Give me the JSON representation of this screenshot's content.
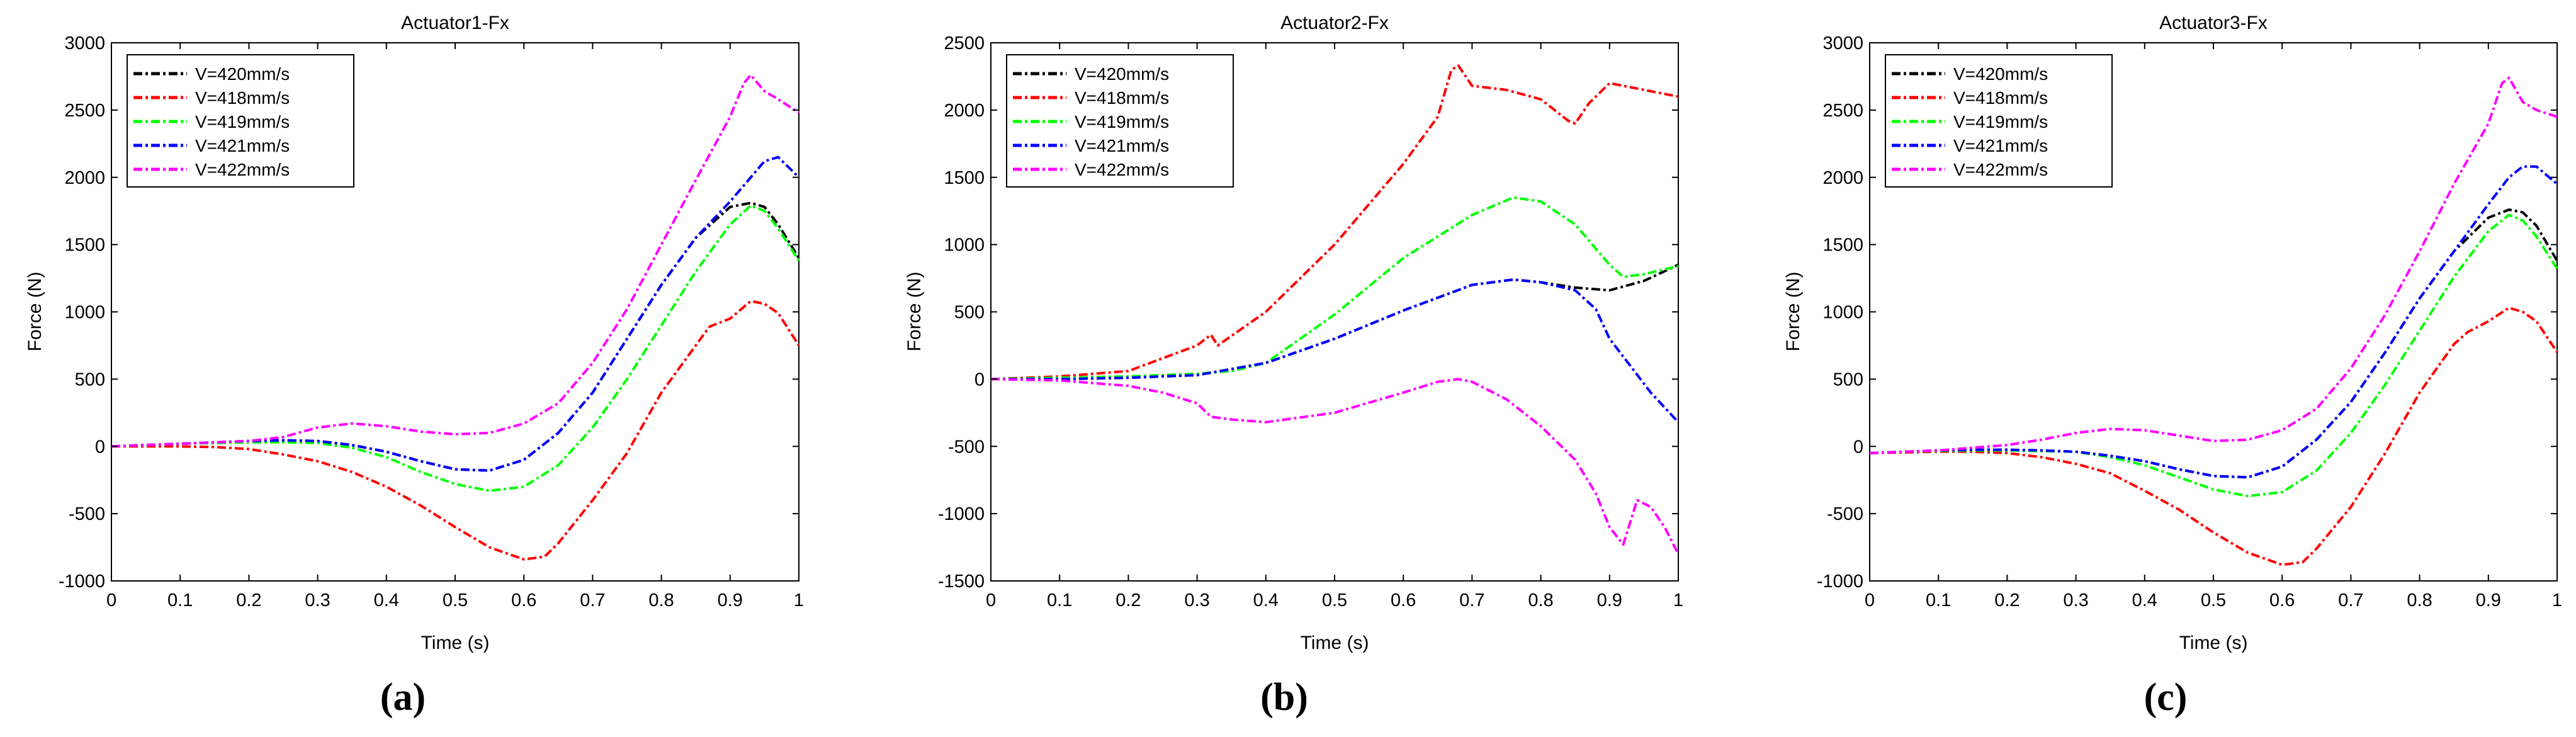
{
  "figure": {
    "panel_labels": [
      "(a)",
      "(b)",
      "(c)"
    ]
  },
  "chart_data": [
    {
      "type": "line",
      "title": "Actuator1-Fx",
      "xlabel": "Time (s)",
      "ylabel": "Force (N)",
      "xlim": [
        0,
        1
      ],
      "ylim": [
        -1000,
        3000
      ],
      "xticks": [
        0,
        0.1,
        0.2,
        0.3,
        0.4,
        0.5,
        0.6,
        0.7,
        0.8,
        0.9,
        1
      ],
      "yticks": [
        -1000,
        -500,
        0,
        500,
        1000,
        1500,
        2000,
        2500,
        3000
      ],
      "legend_position": "top-left",
      "panel_label": "(a)",
      "series": [
        {
          "name": "V=420mm/s",
          "color": "#000000",
          "x": [
            0,
            0.05,
            0.1,
            0.15,
            0.2,
            0.25,
            0.3,
            0.35,
            0.4,
            0.45,
            0.5,
            0.55,
            0.6,
            0.65,
            0.7,
            0.75,
            0.8,
            0.85,
            0.9,
            0.93,
            0.95,
            0.97,
            1
          ],
          "y": [
            0,
            10,
            20,
            30,
            40,
            45,
            40,
            10,
            -40,
            -110,
            -170,
            -180,
            -100,
            100,
            400,
            800,
            1200,
            1550,
            1780,
            1810,
            1780,
            1650,
            1400
          ]
        },
        {
          "name": "V=418mm/s",
          "color": "#ff0000",
          "x": [
            0,
            0.05,
            0.1,
            0.15,
            0.2,
            0.25,
            0.3,
            0.35,
            0.4,
            0.45,
            0.5,
            0.55,
            0.6,
            0.63,
            0.65,
            0.7,
            0.75,
            0.8,
            0.85,
            0.87,
            0.9,
            0.93,
            0.95,
            0.97,
            1
          ],
          "y": [
            0,
            0,
            0,
            -5,
            -20,
            -60,
            -110,
            -190,
            -300,
            -440,
            -600,
            -750,
            -840,
            -820,
            -720,
            -400,
            -50,
            400,
            750,
            890,
            950,
            1080,
            1060,
            990,
            750
          ]
        },
        {
          "name": "V=419mm/s",
          "color": "#00ff00",
          "x": [
            0,
            0.05,
            0.1,
            0.15,
            0.2,
            0.25,
            0.3,
            0.35,
            0.4,
            0.45,
            0.5,
            0.55,
            0.6,
            0.65,
            0.7,
            0.75,
            0.8,
            0.85,
            0.9,
            0.93,
            0.95,
            0.97,
            1
          ],
          "y": [
            0,
            10,
            20,
            25,
            30,
            30,
            25,
            -10,
            -80,
            -190,
            -280,
            -330,
            -300,
            -140,
            140,
            500,
            900,
            1300,
            1650,
            1790,
            1750,
            1620,
            1380
          ]
        },
        {
          "name": "V=421mm/s",
          "color": "#0000ff",
          "x": [
            0,
            0.05,
            0.1,
            0.15,
            0.2,
            0.25,
            0.3,
            0.35,
            0.4,
            0.45,
            0.5,
            0.55,
            0.6,
            0.65,
            0.7,
            0.75,
            0.8,
            0.85,
            0.9,
            0.93,
            0.95,
            0.97,
            1
          ],
          "y": [
            0,
            10,
            20,
            30,
            40,
            45,
            40,
            10,
            -40,
            -110,
            -170,
            -180,
            -100,
            100,
            400,
            800,
            1200,
            1550,
            1820,
            2000,
            2120,
            2150,
            2000
          ]
        },
        {
          "name": "V=422mm/s",
          "color": "#ff00ff",
          "x": [
            0,
            0.05,
            0.1,
            0.15,
            0.2,
            0.25,
            0.3,
            0.35,
            0.4,
            0.45,
            0.5,
            0.55,
            0.6,
            0.65,
            0.7,
            0.75,
            0.8,
            0.85,
            0.9,
            0.92,
            0.93,
            0.95,
            0.97,
            1
          ],
          "y": [
            0,
            10,
            20,
            30,
            40,
            70,
            140,
            170,
            150,
            110,
            90,
            100,
            170,
            320,
            620,
            1020,
            1500,
            1980,
            2450,
            2700,
            2760,
            2640,
            2580,
            2480
          ]
        }
      ]
    },
    {
      "type": "line",
      "title": "Actuator2-Fx",
      "xlabel": "Time (s)",
      "ylabel": "Force (N)",
      "xlim": [
        0,
        1
      ],
      "ylim": [
        -1500,
        2500
      ],
      "xticks": [
        0,
        0.1,
        0.2,
        0.3,
        0.4,
        0.5,
        0.6,
        0.7,
        0.8,
        0.9,
        1
      ],
      "yticks": [
        -1500,
        -1000,
        -500,
        0,
        500,
        1000,
        1500,
        2000,
        2500
      ],
      "legend_position": "top-left",
      "panel_label": "(b)",
      "series": [
        {
          "name": "V=420mm/s",
          "color": "#000000",
          "x": [
            0,
            0.1,
            0.2,
            0.3,
            0.4,
            0.5,
            0.6,
            0.7,
            0.76,
            0.8,
            0.85,
            0.9,
            0.95,
            1
          ],
          "y": [
            0,
            0,
            10,
            30,
            120,
            300,
            510,
            700,
            740,
            720,
            680,
            660,
            730,
            850
          ]
        },
        {
          "name": "V=418mm/s",
          "color": "#ff0000",
          "x": [
            0,
            0.1,
            0.2,
            0.3,
            0.32,
            0.33,
            0.4,
            0.5,
            0.6,
            0.65,
            0.67,
            0.68,
            0.7,
            0.75,
            0.8,
            0.84,
            0.85,
            0.87,
            0.9,
            0.95,
            1
          ],
          "y": [
            0,
            20,
            60,
            250,
            330,
            250,
            500,
            1000,
            1600,
            1950,
            2300,
            2330,
            2180,
            2150,
            2080,
            1920,
            1900,
            2050,
            2200,
            2150,
            2100
          ]
        },
        {
          "name": "V=419mm/s",
          "color": "#00ff00",
          "x": [
            0,
            0.1,
            0.2,
            0.3,
            0.35,
            0.4,
            0.5,
            0.6,
            0.7,
            0.76,
            0.8,
            0.85,
            0.9,
            0.92,
            0.95,
            1
          ],
          "y": [
            0,
            10,
            20,
            40,
            60,
            120,
            480,
            900,
            1220,
            1350,
            1320,
            1150,
            850,
            760,
            780,
            840
          ]
        },
        {
          "name": "V=421mm/s",
          "color": "#0000ff",
          "x": [
            0,
            0.1,
            0.2,
            0.3,
            0.4,
            0.5,
            0.6,
            0.7,
            0.76,
            0.8,
            0.85,
            0.88,
            0.9,
            0.93,
            0.96,
            1
          ],
          "y": [
            0,
            0,
            10,
            30,
            120,
            300,
            510,
            700,
            740,
            720,
            660,
            520,
            300,
            100,
            -100,
            -320
          ]
        },
        {
          "name": "V=422mm/s",
          "color": "#ff00ff",
          "x": [
            0,
            0.1,
            0.2,
            0.25,
            0.3,
            0.32,
            0.35,
            0.4,
            0.5,
            0.6,
            0.65,
            0.68,
            0.7,
            0.75,
            0.8,
            0.85,
            0.88,
            0.9,
            0.92,
            0.94,
            0.96,
            0.98,
            1
          ],
          "y": [
            0,
            -10,
            -50,
            -100,
            -180,
            -280,
            -300,
            -320,
            -250,
            -100,
            -20,
            0,
            -20,
            -150,
            -350,
            -600,
            -850,
            -1100,
            -1230,
            -900,
            -950,
            -1100,
            -1300
          ]
        }
      ]
    },
    {
      "type": "line",
      "title": "Actuator3-Fx",
      "xlabel": "Time (s)",
      "ylabel": "Force (N)",
      "xlim": [
        0,
        1
      ],
      "ylim": [
        -1000,
        3000
      ],
      "xticks": [
        0,
        0.1,
        0.2,
        0.3,
        0.4,
        0.5,
        0.6,
        0.7,
        0.8,
        0.9,
        1
      ],
      "yticks": [
        -1000,
        -500,
        0,
        500,
        1000,
        1500,
        2000,
        2500,
        3000
      ],
      "legend_position": "top-left",
      "panel_label": "(c)",
      "series": [
        {
          "name": "V=420mm/s",
          "color": "#000000",
          "x": [
            0,
            0.05,
            0.1,
            0.15,
            0.2,
            0.25,
            0.3,
            0.35,
            0.4,
            0.45,
            0.5,
            0.55,
            0.6,
            0.65,
            0.7,
            0.75,
            0.8,
            0.85,
            0.9,
            0.93,
            0.95,
            0.97,
            1
          ],
          "y": [
            -50,
            -40,
            -30,
            -25,
            -25,
            -30,
            -40,
            -70,
            -110,
            -170,
            -220,
            -230,
            -150,
            50,
            330,
            700,
            1100,
            1450,
            1700,
            1760,
            1740,
            1640,
            1380
          ]
        },
        {
          "name": "V=418mm/s",
          "color": "#ff0000",
          "x": [
            0,
            0.05,
            0.1,
            0.15,
            0.2,
            0.25,
            0.3,
            0.35,
            0.4,
            0.45,
            0.5,
            0.55,
            0.6,
            0.63,
            0.65,
            0.7,
            0.75,
            0.8,
            0.85,
            0.87,
            0.9,
            0.93,
            0.95,
            0.97,
            1
          ],
          "y": [
            -50,
            -45,
            -40,
            -40,
            -50,
            -80,
            -130,
            -200,
            -330,
            -470,
            -640,
            -790,
            -880,
            -860,
            -760,
            -450,
            -50,
            400,
            760,
            850,
            930,
            1030,
            1000,
            930,
            700
          ]
        },
        {
          "name": "V=419mm/s",
          "color": "#00ff00",
          "x": [
            0,
            0.05,
            0.1,
            0.15,
            0.2,
            0.25,
            0.3,
            0.35,
            0.4,
            0.45,
            0.5,
            0.55,
            0.6,
            0.65,
            0.7,
            0.75,
            0.8,
            0.85,
            0.9,
            0.93,
            0.95,
            0.97,
            1
          ],
          "y": [
            -50,
            -40,
            -35,
            -30,
            -30,
            -35,
            -40,
            -80,
            -140,
            -230,
            -320,
            -370,
            -340,
            -180,
            100,
            460,
            860,
            1260,
            1600,
            1720,
            1680,
            1560,
            1320
          ]
        },
        {
          "name": "V=421mm/s",
          "color": "#0000ff",
          "x": [
            0,
            0.05,
            0.1,
            0.15,
            0.2,
            0.25,
            0.3,
            0.35,
            0.4,
            0.45,
            0.5,
            0.55,
            0.6,
            0.65,
            0.7,
            0.75,
            0.8,
            0.85,
            0.9,
            0.93,
            0.95,
            0.97,
            1
          ],
          "y": [
            -50,
            -40,
            -30,
            -25,
            -25,
            -30,
            -40,
            -70,
            -110,
            -170,
            -220,
            -230,
            -150,
            50,
            330,
            700,
            1100,
            1450,
            1800,
            2000,
            2080,
            2080,
            1950
          ]
        },
        {
          "name": "V=422mm/s",
          "color": "#ff00ff",
          "x": [
            0,
            0.05,
            0.1,
            0.15,
            0.2,
            0.25,
            0.3,
            0.35,
            0.4,
            0.45,
            0.5,
            0.55,
            0.6,
            0.65,
            0.7,
            0.75,
            0.8,
            0.85,
            0.9,
            0.92,
            0.93,
            0.95,
            0.97,
            1
          ],
          "y": [
            -50,
            -40,
            -30,
            -10,
            10,
            50,
            100,
            130,
            120,
            80,
            40,
            50,
            120,
            280,
            580,
            980,
            1450,
            1950,
            2400,
            2700,
            2740,
            2560,
            2500,
            2450
          ]
        }
      ]
    }
  ]
}
